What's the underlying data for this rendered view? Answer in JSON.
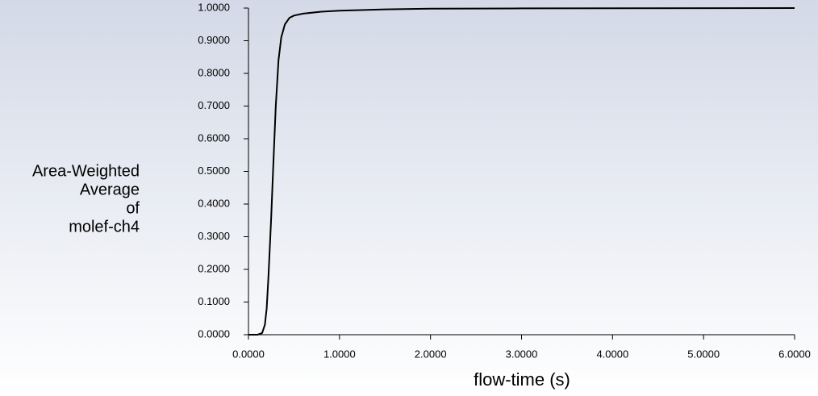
{
  "chart_data": {
    "type": "line",
    "xlabel": "flow-time (s)",
    "ylabel": [
      "Area-Weighted",
      "Average",
      "of",
      "molef-ch4"
    ],
    "x": [
      0,
      0.1,
      0.15,
      0.18,
      0.2,
      0.22,
      0.25,
      0.27,
      0.3,
      0.33,
      0.36,
      0.4,
      0.45,
      0.5,
      0.6,
      0.8,
      1.0,
      1.5,
      2,
      3,
      6
    ],
    "series": [
      {
        "color": "#000000",
        "values": [
          0,
          0,
          0.005,
          0.03,
          0.08,
          0.18,
          0.36,
          0.5,
          0.7,
          0.84,
          0.91,
          0.95,
          0.97,
          0.977,
          0.983,
          0.989,
          0.992,
          0.996,
          0.998,
          0.999,
          1.0
        ]
      }
    ],
    "xlim": [
      0,
      6
    ],
    "ylim": [
      0,
      1
    ],
    "xticks": [
      {
        "value": 0,
        "label": "0.0000"
      },
      {
        "value": 1,
        "label": "1.0000"
      },
      {
        "value": 2,
        "label": "2.0000"
      },
      {
        "value": 3,
        "label": "3.0000"
      },
      {
        "value": 4,
        "label": "4.0000"
      },
      {
        "value": 5,
        "label": "5.0000"
      },
      {
        "value": 6,
        "label": "6.0000"
      }
    ],
    "yticks": [
      {
        "value": 0,
        "label": "0.0000"
      },
      {
        "value": 0.1,
        "label": "0.1000"
      },
      {
        "value": 0.2,
        "label": "0.2000"
      },
      {
        "value": 0.3,
        "label": "0.3000"
      },
      {
        "value": 0.4,
        "label": "0.4000"
      },
      {
        "value": 0.5,
        "label": "0.5000"
      },
      {
        "value": 0.6,
        "label": "0.6000"
      },
      {
        "value": 0.7,
        "label": "0.7000"
      },
      {
        "value": 0.8,
        "label": "0.8000"
      },
      {
        "value": 0.9,
        "label": "0.9000"
      },
      {
        "value": 1,
        "label": "1.0000"
      }
    ]
  }
}
